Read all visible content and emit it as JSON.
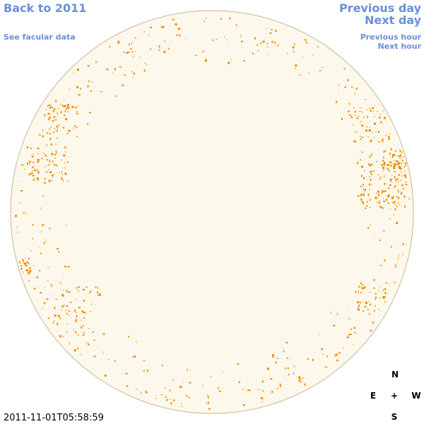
{
  "nav": {
    "back_year": "Back to 2011",
    "facular_data": "See facular data",
    "previous_day": "Previous day",
    "next_day": "Next day",
    "previous_hour": "Previous hour",
    "next_hour": "Next hour"
  },
  "timestamp": "2011-11-01T05:58:59",
  "compass": {
    "north": "N",
    "east": "E",
    "center": "+",
    "west": "W",
    "south": "S"
  }
}
